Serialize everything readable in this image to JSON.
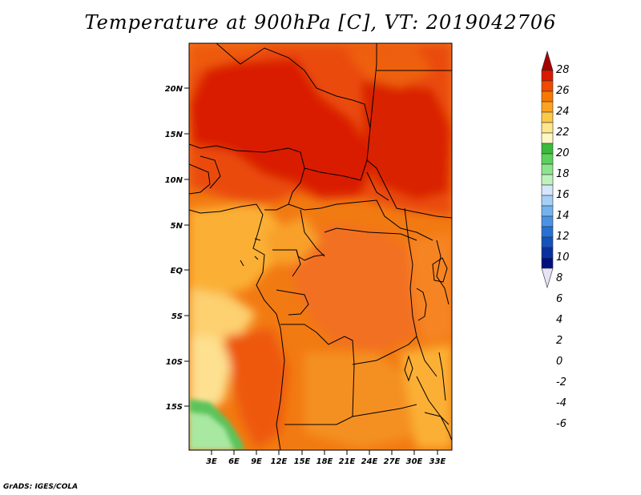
{
  "title": "Temperature at 900hPa [C], VT: 2019042706",
  "credit": "GrADS: IGES/COLA",
  "map": {
    "variable": "Temperature at 900hPa",
    "units": "C",
    "valid_time": "2019042706",
    "lat_ticks": [
      "20N",
      "15N",
      "10N",
      "5N",
      "EQ",
      "5S",
      "10S",
      "15S"
    ],
    "lon_ticks": [
      "3E",
      "6E",
      "9E",
      "12E",
      "15E",
      "18E",
      "21E",
      "24E",
      "27E",
      "30E",
      "33E"
    ]
  },
  "colorbar": {
    "labels": [
      "28",
      "26",
      "24",
      "22",
      "20",
      "18",
      "16",
      "14",
      "12",
      "10",
      "8",
      "6",
      "4",
      "2",
      "0",
      "-2",
      "-4",
      "-6"
    ],
    "colors": [
      "#a50000",
      "#d91a00",
      "#ee4a00",
      "#f77800",
      "#fba220",
      "#fcc848",
      "#fde68c",
      "#fcf8c4",
      "#3aba3a",
      "#5cd15c",
      "#8ee48e",
      "#bdf2bd",
      "#d6e6fa",
      "#a6cff5",
      "#74b2ee",
      "#4a92e6",
      "#2870d6",
      "#1452bc",
      "#0a30a0",
      "#001080",
      "#e4e4f4"
    ]
  }
}
